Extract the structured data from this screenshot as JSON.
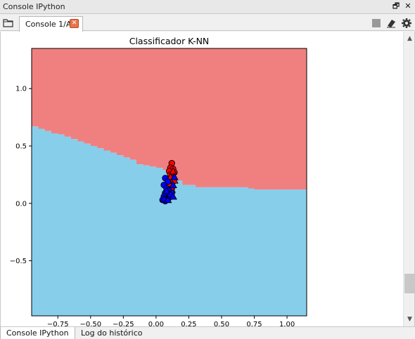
{
  "window": {
    "title": "Console IPython",
    "restore_glyph": "🗗",
    "close_glyph": "✕"
  },
  "tabs": [
    {
      "label": "Console 1/A",
      "close_glyph": "✕"
    }
  ],
  "toolbar": {
    "icons": [
      "folder-icon",
      "stop-icon",
      "eraser-icon",
      "gear-icon"
    ]
  },
  "bottom_tabs": [
    {
      "label": "Console IPython",
      "active": true
    },
    {
      "label": "Log do histórico",
      "active": false
    }
  ],
  "colors": {
    "region_class0": "#f08080",
    "region_class1": "#87ceeb",
    "points_class0": "#ff0000",
    "points_class1": "#0000ff"
  },
  "chart_data": {
    "type": "scatter",
    "title": "Classificador K-NN",
    "xlabel": "",
    "ylabel": "",
    "xlim": [
      -0.95,
      1.15
    ],
    "ylim": [
      -0.98,
      1.35
    ],
    "xticks": [
      -0.75,
      -0.5,
      -0.25,
      0.0,
      0.25,
      0.5,
      0.75,
      1.0
    ],
    "xtick_labels": [
      "−0.75",
      "−0.50",
      "−0.25",
      "0.00",
      "0.25",
      "0.50",
      "0.75",
      "1.00"
    ],
    "yticks": [
      -0.5,
      0.0,
      0.5,
      1.0
    ],
    "ytick_labels": [
      "−0.5",
      "0.0",
      "0.5",
      "1.0"
    ],
    "grid": false,
    "decision_boundary": {
      "x": [
        -0.95,
        -0.9,
        -0.85,
        -0.8,
        -0.75,
        -0.7,
        -0.65,
        -0.6,
        -0.55,
        -0.5,
        -0.45,
        -0.4,
        -0.35,
        -0.3,
        -0.25,
        -0.2,
        -0.15,
        -0.1,
        -0.05,
        0.0,
        0.05,
        0.1,
        0.15,
        0.2,
        0.25,
        0.3,
        0.35,
        0.5,
        0.7,
        0.75,
        1.0,
        1.15
      ],
      "y": [
        0.67,
        0.65,
        0.63,
        0.61,
        0.6,
        0.58,
        0.56,
        0.54,
        0.52,
        0.5,
        0.48,
        0.46,
        0.44,
        0.42,
        0.4,
        0.38,
        0.34,
        0.33,
        0.32,
        0.31,
        0.29,
        0.27,
        0.2,
        0.16,
        0.16,
        0.14,
        0.14,
        0.14,
        0.13,
        0.12,
        0.12,
        0.12
      ]
    },
    "series": [
      {
        "class": 0,
        "marker": "circle",
        "points": [
          [
            0.12,
            0.35
          ],
          [
            0.11,
            0.31
          ],
          [
            0.13,
            0.3
          ],
          [
            0.1,
            0.28
          ],
          [
            0.14,
            0.27
          ],
          [
            0.11,
            0.25
          ],
          [
            0.12,
            0.22
          ],
          [
            0.1,
            0.2
          ],
          [
            0.13,
            0.19
          ],
          [
            0.11,
            0.16
          ],
          [
            0.12,
            0.13
          ]
        ]
      },
      {
        "class": 0,
        "marker": "triangle",
        "points": [
          [
            0.13,
            0.28
          ],
          [
            0.11,
            0.23
          ],
          [
            0.14,
            0.2
          ],
          [
            0.1,
            0.17
          ],
          [
            0.12,
            0.12
          ]
        ]
      },
      {
        "class": 1,
        "marker": "circle",
        "points": [
          [
            0.07,
            0.22
          ],
          [
            0.09,
            0.19
          ],
          [
            0.06,
            0.16
          ],
          [
            0.08,
            0.13
          ],
          [
            0.1,
            0.11
          ],
          [
            0.07,
            0.09
          ],
          [
            0.09,
            0.07
          ],
          [
            0.06,
            0.06
          ],
          [
            0.08,
            0.04
          ],
          [
            0.05,
            0.03
          ],
          [
            0.07,
            0.02
          ],
          [
            0.1,
            0.05
          ],
          [
            0.12,
            0.09
          ]
        ]
      },
      {
        "class": 1,
        "marker": "triangle",
        "points": [
          [
            0.14,
            0.23
          ],
          [
            0.13,
            0.16
          ],
          [
            0.08,
            0.11
          ],
          [
            0.11,
            0.08
          ],
          [
            0.06,
            0.04
          ],
          [
            0.09,
            0.03
          ],
          [
            0.13,
            0.06
          ]
        ]
      }
    ]
  }
}
